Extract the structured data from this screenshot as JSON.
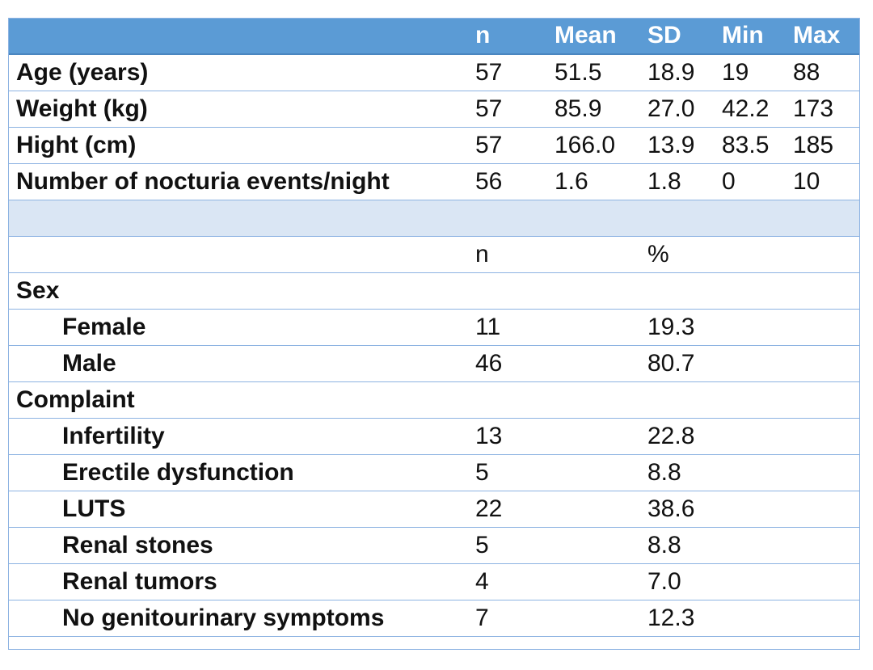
{
  "header": {
    "cells": [
      "",
      "n",
      "Mean",
      "SD",
      "Min",
      "Max"
    ]
  },
  "continuous_rows": [
    {
      "label": "Age (years)",
      "n": "57",
      "mean": "51.5",
      "sd": "18.9",
      "min": "19",
      "max": "88"
    },
    {
      "label": "Weight (kg)",
      "n": "57",
      "mean": "85.9",
      "sd": "27.0",
      "min": "42.2",
      "max": "173"
    },
    {
      "label": "Hight (cm)",
      "n": "57",
      "mean": "166.0",
      "sd": "13.9",
      "min": "83.5",
      "max": "185"
    },
    {
      "label": "Number of nocturia events/night",
      "n": "56",
      "mean": "1.6",
      "sd": "1.8",
      "min": "0",
      "max": "10"
    }
  ],
  "subheader": {
    "n": "n",
    "pct": "%"
  },
  "sex": {
    "title": "Sex",
    "items": [
      {
        "label": "Female",
        "n": "11",
        "pct": "19.3"
      },
      {
        "label": "Male",
        "n": "46",
        "pct": "80.7"
      }
    ]
  },
  "complaint": {
    "title": "Complaint",
    "items": [
      {
        "label": "Infertility",
        "n": "13",
        "pct": "22.8"
      },
      {
        "label": "Erectile dysfunction",
        "n": "5",
        "pct": "8.8"
      },
      {
        "label": "LUTS",
        "n": "22",
        "pct": "38.6"
      },
      {
        "label": "Renal stones",
        "n": "5",
        "pct": "8.8"
      },
      {
        "label": "Renal tumors",
        "n": "4",
        "pct": "7.0"
      },
      {
        "label": "No genitourinary symptoms",
        "n": "7",
        "pct": "12.3"
      }
    ]
  },
  "colors": {
    "header_bg": "#5b9bd5",
    "blank_row_bg": "#dae6f4",
    "rule": "#8db3e2"
  }
}
